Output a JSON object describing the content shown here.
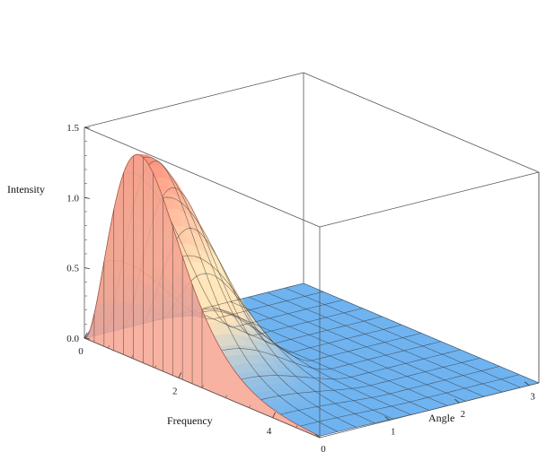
{
  "chart_data": {
    "type": "surface3d",
    "xlabel": "Frequency",
    "ylabel": "Angle",
    "zlabel": "Intensity",
    "x_ticks": [
      "0",
      "2",
      "4"
    ],
    "y_ticks": [
      "0",
      "1",
      "2",
      "3"
    ],
    "z_ticks": [
      "0.0",
      "0.5",
      "1.0",
      "1.5"
    ],
    "xlim": [
      0,
      5
    ],
    "ylim": [
      0,
      3.14
    ],
    "zlim": [
      0,
      1.5
    ],
    "function": "planck-like spectral intensity peaking near frequency 0.5 at angle 0, decaying with cos(angle)",
    "peak": {
      "frequency": 0.5,
      "angle": 0,
      "intensity": 1.47
    },
    "sampled_values": {
      "angle_0": [
        [
          0.0,
          0.0
        ],
        [
          0.25,
          1.15
        ],
        [
          0.5,
          1.47
        ],
        [
          1.0,
          1.32
        ],
        [
          1.5,
          1.0
        ],
        [
          2.0,
          0.68
        ],
        [
          2.5,
          0.42
        ],
        [
          3.0,
          0.24
        ],
        [
          4.0,
          0.06
        ],
        [
          5.0,
          0.01
        ]
      ],
      "angle_pi_over_2_and_beyond": 0.0
    },
    "colors": {
      "high": "#f28a78",
      "mid": "#f6d9b0",
      "low": "#6fb3f0",
      "box": "#555555"
    },
    "grid": false
  }
}
